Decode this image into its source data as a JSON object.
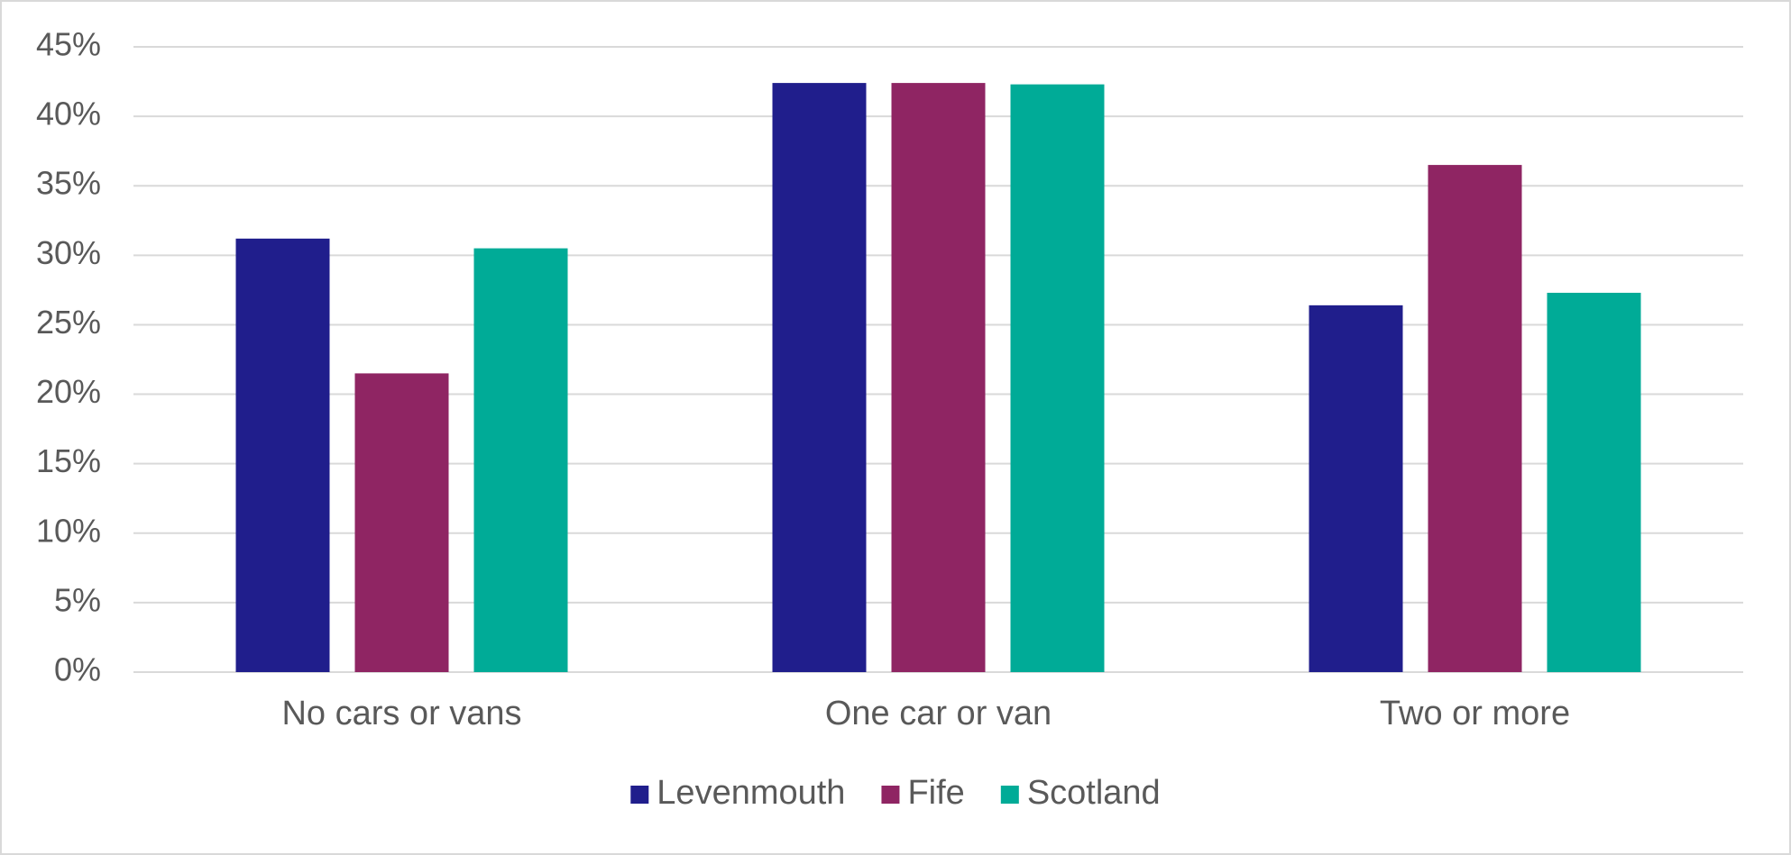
{
  "chart_data": {
    "type": "bar",
    "categories": [
      "No cars or vans",
      "One car or van",
      "Two or more"
    ],
    "series": [
      {
        "name": "Levenmouth",
        "color": "#201e8c",
        "values": [
          31.2,
          42.4,
          26.4
        ]
      },
      {
        "name": "Fife",
        "color": "#8f2563",
        "values": [
          21.5,
          42.4,
          36.5
        ]
      },
      {
        "name": "Scotland",
        "color": "#00ab97",
        "values": [
          30.5,
          42.3,
          27.3
        ]
      }
    ],
    "ylim": [
      0,
      45
    ],
    "yticks": [
      {
        "value": 0,
        "label": "0%"
      },
      {
        "value": 5,
        "label": "5%"
      },
      {
        "value": 10,
        "label": "10%"
      },
      {
        "value": 15,
        "label": "15%"
      },
      {
        "value": 20,
        "label": "20%"
      },
      {
        "value": 25,
        "label": "25%"
      },
      {
        "value": 30,
        "label": "30%"
      },
      {
        "value": 35,
        "label": "35%"
      },
      {
        "value": 40,
        "label": "40%"
      },
      {
        "value": 45,
        "label": "45%"
      }
    ],
    "grid": true,
    "legend": "bottom"
  }
}
